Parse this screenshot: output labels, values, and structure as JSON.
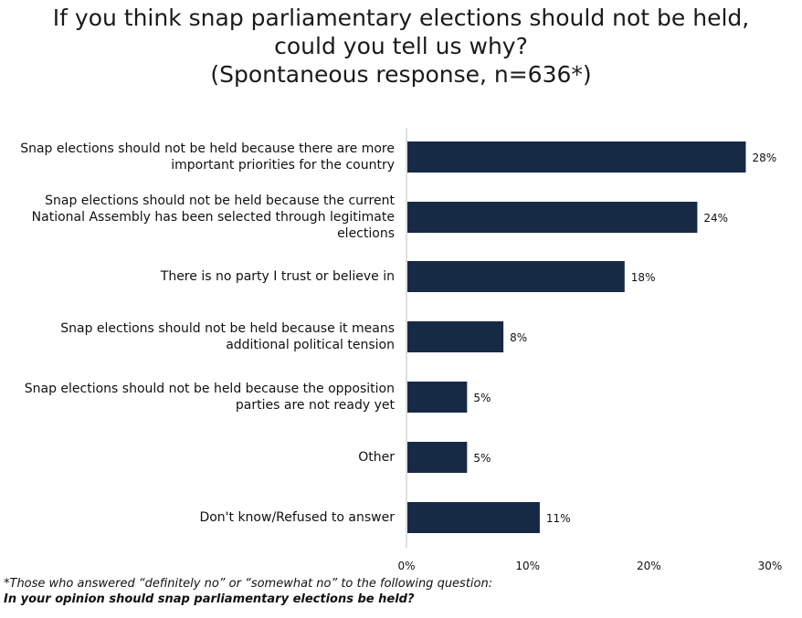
{
  "chart_data": {
    "type": "bar",
    "orientation": "horizontal",
    "title": [
      "If you think snap parliamentary elections should not be held,",
      "could you tell us why?",
      "(Spontaneous response, n=636*)"
    ],
    "categories": [
      [
        "Snap elections should not be held because there are more",
        "important priorities for the country"
      ],
      [
        "Snap elections should not be held because the current",
        "National Assembly has been selected through legitimate",
        "elections"
      ],
      [
        "There is no party I trust or believe in"
      ],
      [
        "Snap elections should not be held because it means",
        "additional political tension"
      ],
      [
        "Snap elections should not be held because the opposition",
        "parties are not ready yet"
      ],
      [
        "Other"
      ],
      [
        "Don't know/Refused to answer"
      ]
    ],
    "values": [
      28,
      24,
      18,
      8,
      5,
      5,
      11
    ],
    "value_labels": [
      "28%",
      "24%",
      "18%",
      "8%",
      "5%",
      "5%",
      "11%"
    ],
    "xlim": [
      0,
      30
    ],
    "x_ticks": [
      "0%",
      "10%",
      "20%",
      "30%"
    ],
    "grid": false,
    "bar_color": "#172a45"
  },
  "footnotes": {
    "line1": "*Those who answered “definitely no” or “somewhat no” to the following question:",
    "line2": "In your opinion should snap parliamentary elections be held?"
  }
}
